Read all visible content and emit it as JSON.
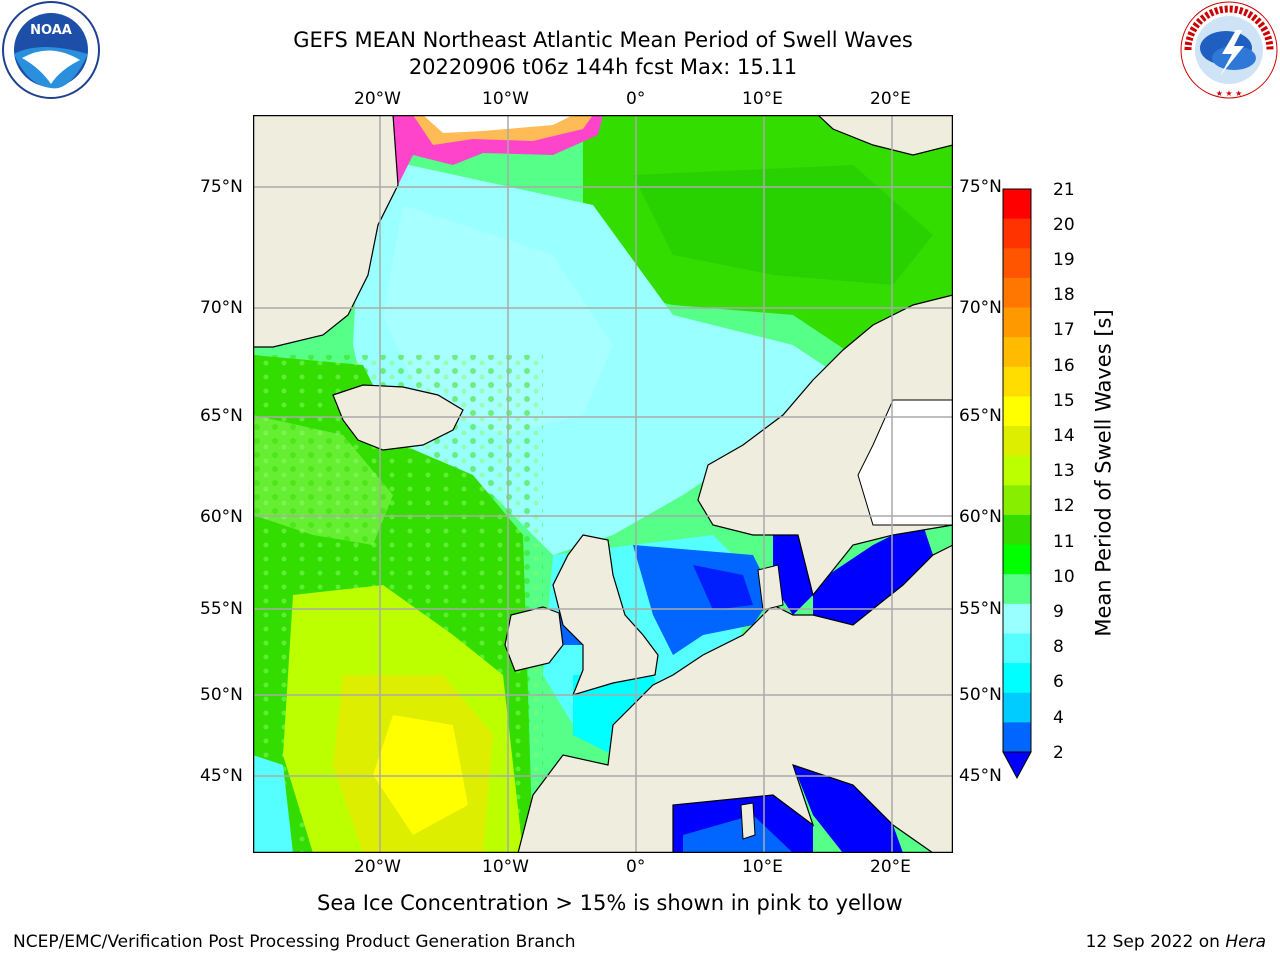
{
  "title_line1": "GEFS MEAN Northeast Atlantic Mean Period of Swell Waves",
  "title_line2": "20220906 t06z 144h fcst   Max: 15.11",
  "logo_left_text": "NOAA",
  "logo_right_text": "NATIONAL WEATHER SERVICE",
  "lon_labels": [
    {
      "text": "20°W",
      "value": -20
    },
    {
      "text": "10°W",
      "value": -10
    },
    {
      "text": "0°",
      "value": 0
    },
    {
      "text": "10°E",
      "value": 10
    },
    {
      "text": "20°E",
      "value": 20
    }
  ],
  "lat_labels": [
    {
      "text": "75°N",
      "value": 75
    },
    {
      "text": "70°N",
      "value": 70
    },
    {
      "text": "65°N",
      "value": 65
    },
    {
      "text": "60°N",
      "value": 60
    },
    {
      "text": "55°N",
      "value": 55
    },
    {
      "text": "50°N",
      "value": 50
    },
    {
      "text": "45°N",
      "value": 45
    }
  ],
  "colorbar": {
    "label": "Mean Period of Swell Waves [s]",
    "ticks": [
      "21",
      "20",
      "19",
      "18",
      "17",
      "16",
      "15",
      "14",
      "13",
      "12",
      "11",
      "10",
      "9",
      "8",
      "6",
      "4",
      "2"
    ],
    "colors": [
      "#ff0000",
      "#ff3300",
      "#ff5500",
      "#ff7700",
      "#ff9900",
      "#ffbb00",
      "#ffdd00",
      "#ffff00",
      "#ddee00",
      "#bbff00",
      "#88ee00",
      "#33dd00",
      "#00ff00",
      "#55ff88",
      "#99ffff",
      "#55ffff",
      "#00ffff",
      "#00ccff",
      "#0066ff"
    ],
    "extend_color": "#0000ff"
  },
  "caption": "Sea Ice Concentration > 15% is shown in pink to yellow",
  "footer_left": "NCEP/EMC/Verification Post Processing Product Generation Branch",
  "footer_right_date": "12 Sep 2022 on ",
  "footer_right_host": "Hera"
}
